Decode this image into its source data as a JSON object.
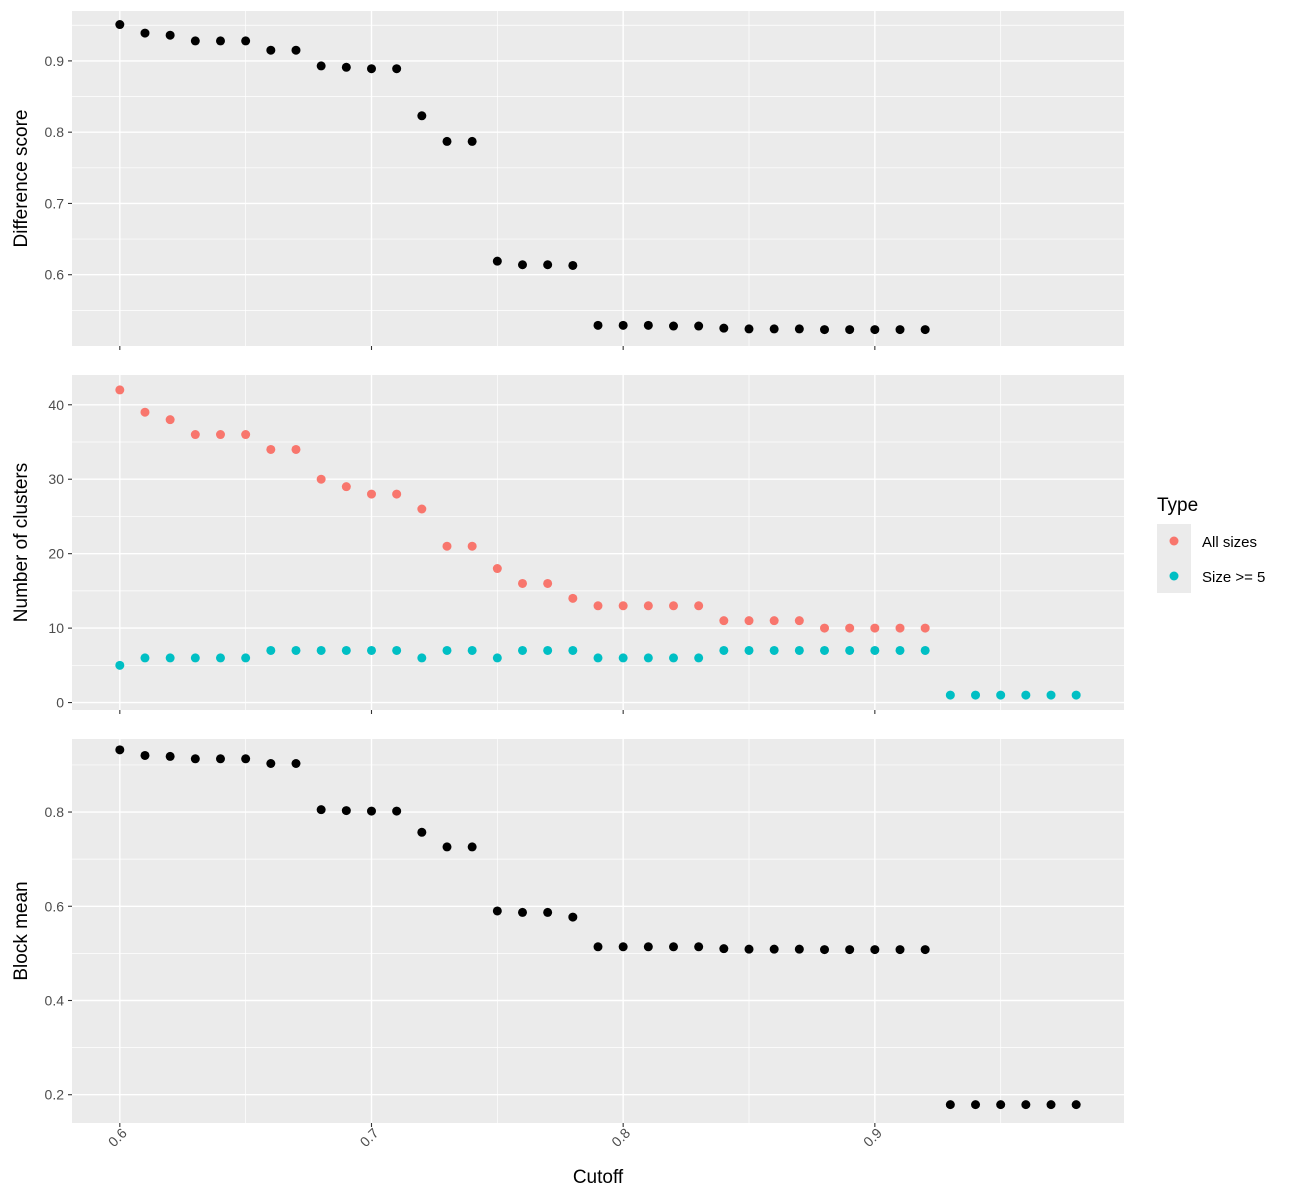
{
  "chart_data": {
    "type": "scatter",
    "layout": "three vertically stacked panels sharing the x axis",
    "background": "grey",
    "grid": true,
    "xlabel": "Cutoff",
    "xlim": [
      0.581,
      0.999
    ],
    "x_ticks": [
      0.6,
      0.7,
      0.8,
      0.9
    ],
    "x_tick_labels": [
      "0.6",
      "0.7",
      "0.8",
      "0.9"
    ],
    "x_tick_label_angle": -45,
    "legend": {
      "title": "Type",
      "placement": "right",
      "entries": [
        {
          "label": "All sizes",
          "color": "#F8766D"
        },
        {
          "label": "Size >= 5",
          "color": "#00BFC4"
        }
      ]
    },
    "panels": [
      {
        "ylabel": "Difference score",
        "ylim": [
          0.5,
          0.97
        ],
        "y_ticks": [
          0.6,
          0.7,
          0.8,
          0.9
        ],
        "y_tick_labels": [
          "0.6",
          "0.7",
          "0.8",
          "0.9"
        ],
        "series": [
          {
            "color": "#000000",
            "x": [
              0.6,
              0.61,
              0.62,
              0.63,
              0.64,
              0.65,
              0.66,
              0.67,
              0.68,
              0.69,
              0.7,
              0.71,
              0.72,
              0.73,
              0.74,
              0.75,
              0.76,
              0.77,
              0.78,
              0.79,
              0.8,
              0.81,
              0.82,
              0.83,
              0.84,
              0.85,
              0.86,
              0.87,
              0.88,
              0.89,
              0.9,
              0.91,
              0.92
            ],
            "y": [
              0.951,
              0.939,
              0.936,
              0.928,
              0.928,
              0.928,
              0.915,
              0.915,
              0.893,
              0.891,
              0.889,
              0.889,
              0.823,
              0.787,
              0.787,
              0.619,
              0.614,
              0.614,
              0.613,
              0.529,
              0.529,
              0.529,
              0.528,
              0.528,
              0.525,
              0.524,
              0.524,
              0.524,
              0.523,
              0.523,
              0.523,
              0.523,
              0.523
            ]
          }
        ]
      },
      {
        "ylabel": "Number of clusters",
        "ylim": [
          -1,
          44
        ],
        "y_ticks": [
          0,
          10,
          20,
          30,
          40
        ],
        "y_tick_labels": [
          "0",
          "10",
          "20",
          "30",
          "40"
        ],
        "series": [
          {
            "name": "All sizes",
            "color": "#F8766D",
            "x": [
              0.6,
              0.61,
              0.62,
              0.63,
              0.64,
              0.65,
              0.66,
              0.67,
              0.68,
              0.69,
              0.7,
              0.71,
              0.72,
              0.73,
              0.74,
              0.75,
              0.76,
              0.77,
              0.78,
              0.79,
              0.8,
              0.81,
              0.82,
              0.83,
              0.84,
              0.85,
              0.86,
              0.87,
              0.88,
              0.89,
              0.9,
              0.91,
              0.92
            ],
            "y": [
              42,
              39,
              38,
              36,
              36,
              36,
              34,
              34,
              30,
              29,
              28,
              28,
              26,
              21,
              21,
              18,
              16,
              16,
              14,
              13,
              13,
              13,
              13,
              13,
              11,
              11,
              11,
              11,
              10,
              10,
              10,
              10,
              10
            ]
          },
          {
            "name": "Size >= 5",
            "color": "#00BFC4",
            "x": [
              0.6,
              0.61,
              0.62,
              0.63,
              0.64,
              0.65,
              0.66,
              0.67,
              0.68,
              0.69,
              0.7,
              0.71,
              0.72,
              0.73,
              0.74,
              0.75,
              0.76,
              0.77,
              0.78,
              0.79,
              0.8,
              0.81,
              0.82,
              0.83,
              0.84,
              0.85,
              0.86,
              0.87,
              0.88,
              0.89,
              0.9,
              0.91,
              0.92,
              0.93,
              0.94,
              0.95,
              0.96,
              0.97,
              0.98
            ],
            "y": [
              5,
              6,
              6,
              6,
              6,
              6,
              7,
              7,
              7,
              7,
              7,
              7,
              6,
              7,
              7,
              6,
              7,
              7,
              7,
              6,
              6,
              6,
              6,
              6,
              7,
              7,
              7,
              7,
              7,
              7,
              7,
              7,
              7,
              1,
              1,
              1,
              1,
              1,
              1
            ]
          }
        ]
      },
      {
        "ylabel": "Block mean",
        "ylim": [
          0.14,
          0.955
        ],
        "y_ticks": [
          0.2,
          0.4,
          0.6,
          0.8
        ],
        "y_tick_labels": [
          "0.2",
          "0.4",
          "0.6",
          "0.8"
        ],
        "series": [
          {
            "color": "#000000",
            "x": [
              0.6,
              0.61,
              0.62,
              0.63,
              0.64,
              0.65,
              0.66,
              0.67,
              0.68,
              0.69,
              0.7,
              0.71,
              0.72,
              0.73,
              0.74,
              0.75,
              0.76,
              0.77,
              0.78,
              0.79,
              0.8,
              0.81,
              0.82,
              0.83,
              0.84,
              0.85,
              0.86,
              0.87,
              0.88,
              0.89,
              0.9,
              0.91,
              0.92,
              0.93,
              0.94,
              0.95,
              0.96,
              0.97,
              0.98
            ],
            "y": [
              0.932,
              0.92,
              0.918,
              0.913,
              0.913,
              0.913,
              0.903,
              0.903,
              0.805,
              0.803,
              0.802,
              0.802,
              0.757,
              0.726,
              0.726,
              0.59,
              0.587,
              0.587,
              0.577,
              0.514,
              0.514,
              0.514,
              0.514,
              0.514,
              0.51,
              0.509,
              0.509,
              0.509,
              0.508,
              0.508,
              0.508,
              0.508,
              0.508,
              0.179,
              0.179,
              0.179,
              0.179,
              0.179,
              0.179
            ]
          }
        ]
      }
    ]
  }
}
